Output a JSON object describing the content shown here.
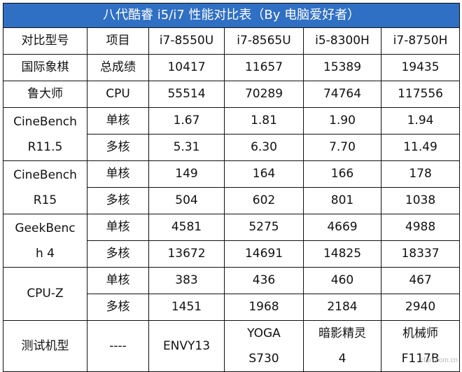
{
  "title": "八代酷睿 i5/i7 性能对比表（By 电脑爱好者）",
  "header": [
    "对比型号",
    "项目",
    "i7-8550U",
    "i7-8565U",
    "i5-8300H",
    "i7-8750H"
  ],
  "rows": [
    {
      "group": "国际象棋",
      "item": "总成绩",
      "values": [
        "10417",
        "11657",
        "15389",
        "19435"
      ]
    },
    {
      "group": "鲁大师",
      "item": "CPU",
      "values": [
        "55514",
        "70289",
        "74764",
        "117556"
      ]
    },
    {
      "group_line1": "CineBench",
      "group_line2": "R11.5",
      "item": "单核",
      "values": [
        "1.67",
        "1.81",
        "1.90",
        "1.94"
      ]
    },
    {
      "item": "多核",
      "values": [
        "5.31",
        "6.30",
        "7.70",
        "11.49"
      ]
    },
    {
      "group_line1": "CineBench",
      "group_line2": "R15",
      "item": "单核",
      "values": [
        "149",
        "164",
        "166",
        "178"
      ]
    },
    {
      "item": "多核",
      "values": [
        "504",
        "602",
        "801",
        "1038"
      ]
    },
    {
      "group_line1": "GeekBenc",
      "group_line2": "h 4",
      "item": "单核",
      "values": [
        "4581",
        "5275",
        "4669",
        "4988"
      ]
    },
    {
      "item": "多核",
      "values": [
        "13672",
        "14691",
        "14825",
        "18337"
      ]
    },
    {
      "group": "CPU-Z",
      "item": "单核",
      "values": [
        "383",
        "436",
        "460",
        "467"
      ]
    },
    {
      "item": "多核",
      "values": [
        "1451",
        "1968",
        "2184",
        "2940"
      ]
    }
  ],
  "machines": {
    "label": "测试机型",
    "item": "----",
    "m1": "ENVY13",
    "m2_line1": "YOGA",
    "m2_line2": "S730",
    "m3_line1": "暗影精灵",
    "m3_line2": "4",
    "m4_line1": "机械师",
    "m4_line2": "F117B"
  },
  "watermark": "cfan.com.cn"
}
